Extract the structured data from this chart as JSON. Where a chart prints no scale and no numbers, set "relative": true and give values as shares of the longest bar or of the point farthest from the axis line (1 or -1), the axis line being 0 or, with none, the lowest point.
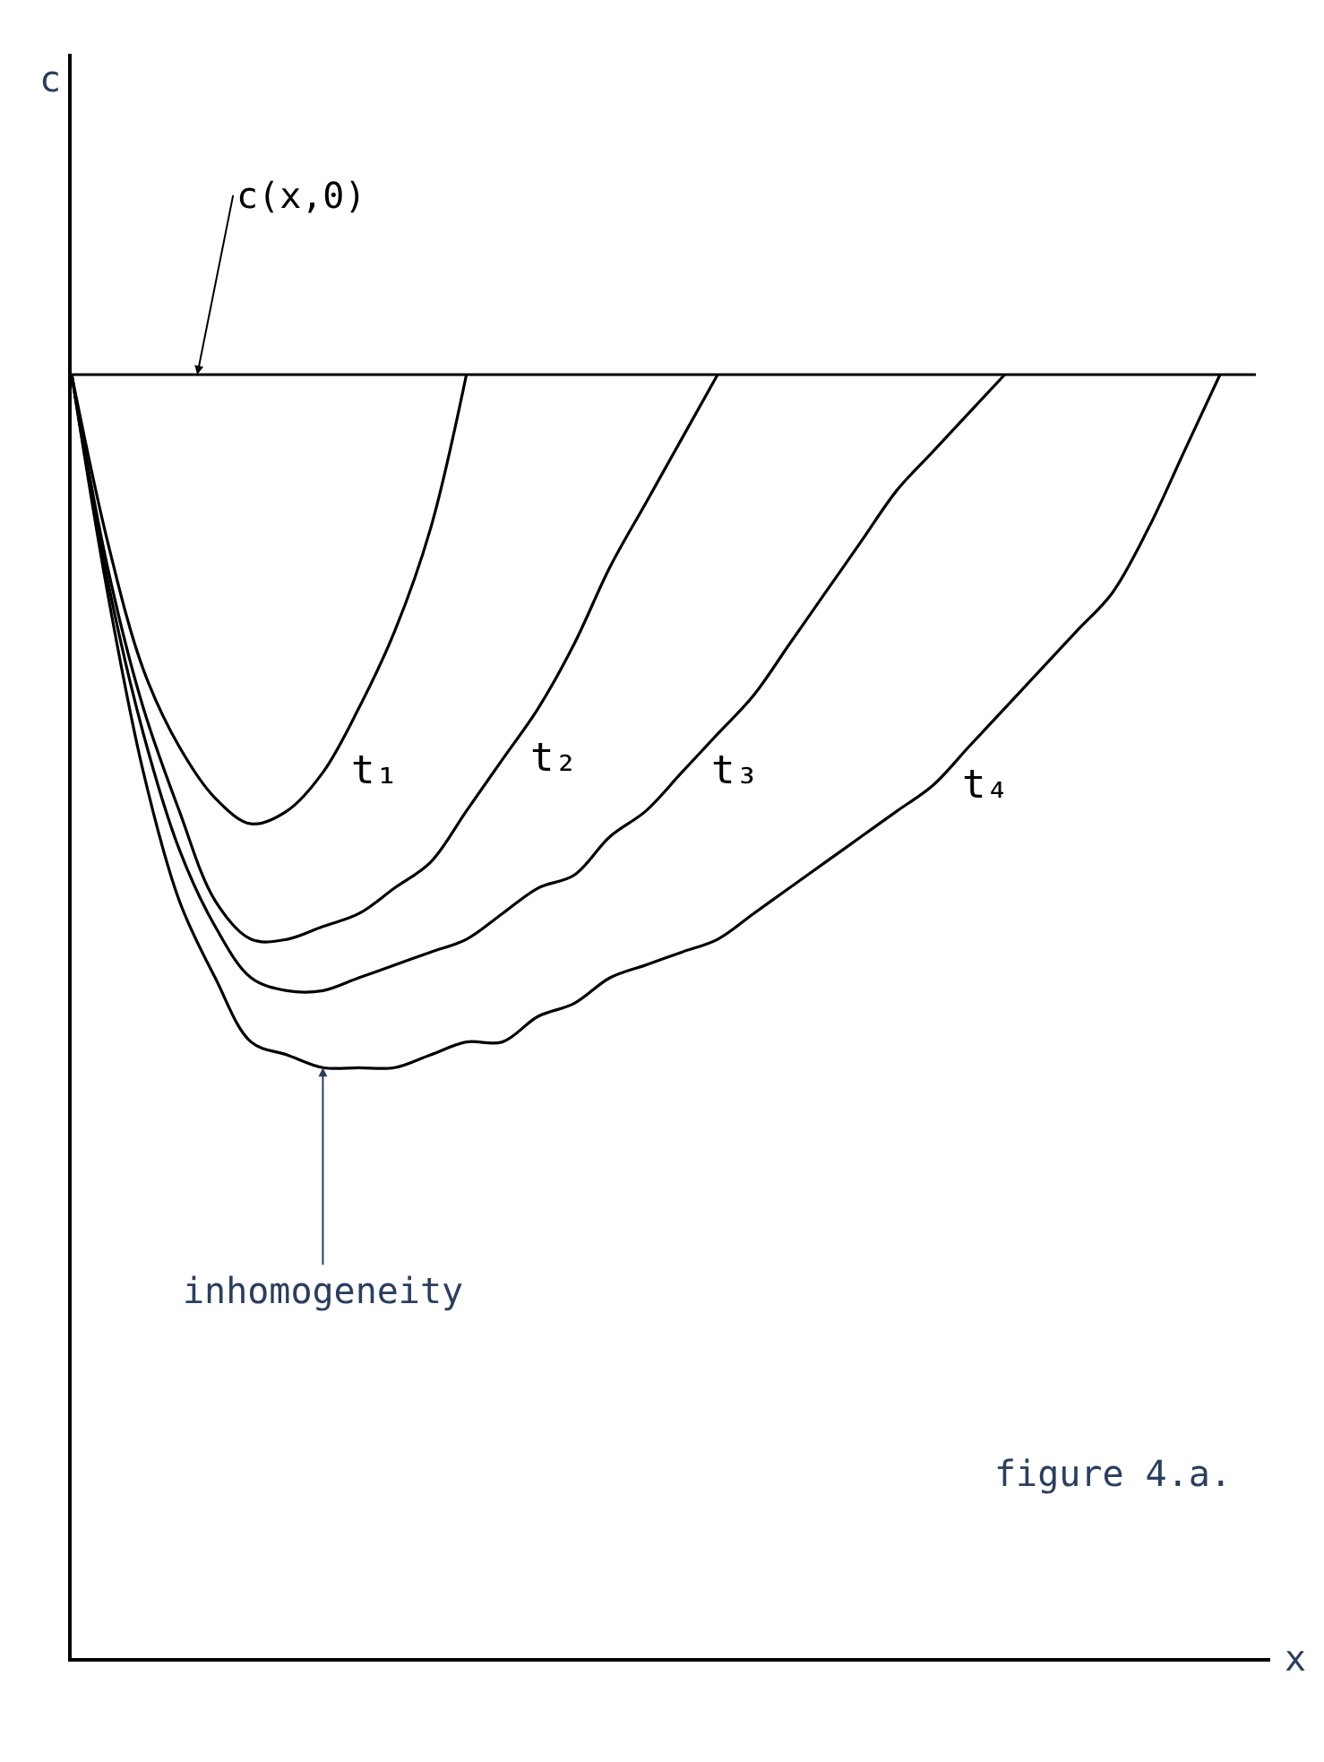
{
  "chart_data": {
    "type": "line",
    "relative": true,
    "xlabel": "x",
    "categories": [
      null,
      null,
      null,
      null,
      null,
      null,
      null,
      null,
      null,
      null,
      null,
      null,
      null,
      null,
      null,
      null,
      null,
      null,
      null,
      null,
      null,
      null,
      null,
      null,
      null,
      null,
      null,
      null,
      null,
      null,
      null,
      null,
      null,
      null
    ],
    "series": [
      {
        "name": "c(x,0)",
        "color": "#000000",
        "values": [
          1,
          1,
          1,
          1,
          1,
          1,
          1,
          1,
          1,
          1,
          1,
          1,
          1,
          1,
          1,
          1,
          1,
          1,
          1,
          1,
          1,
          1,
          1,
          1,
          1,
          1,
          1,
          1,
          1,
          1,
          1,
          1,
          1,
          1
        ]
      },
      {
        "name": "t₁",
        "color": "#000000",
        "values": [
          1,
          0.87,
          0.77,
          0.71,
          0.67,
          0.65,
          0.66,
          0.69,
          0.74,
          0.8,
          0.88,
          1,
          null,
          null,
          null,
          null,
          null,
          null,
          null,
          null,
          null,
          null,
          null,
          null,
          null,
          null,
          null,
          null,
          null,
          null,
          null,
          null,
          null,
          null
        ]
      },
      {
        "name": "t₂",
        "color": "#000000",
        "values": [
          1,
          0.85,
          0.74,
          0.66,
          0.59,
          0.56,
          0.56,
          0.57,
          0.58,
          0.6,
          0.62,
          0.66,
          0.7,
          0.74,
          0.79,
          0.85,
          0.9,
          0.95,
          1,
          null,
          null,
          null,
          null,
          null,
          null,
          null,
          null,
          null,
          null,
          null,
          null,
          null,
          null,
          null
        ]
      },
      {
        "name": "t₃",
        "color": "#000000",
        "values": [
          1,
          0.84,
          0.72,
          0.63,
          0.57,
          0.53,
          0.52,
          0.52,
          0.53,
          0.54,
          0.55,
          0.56,
          0.58,
          0.6,
          0.61,
          0.64,
          0.66,
          0.69,
          0.72,
          0.75,
          0.79,
          0.83,
          0.87,
          0.91,
          0.94,
          0.97,
          1,
          null,
          null,
          null,
          null,
          null,
          null,
          null
        ]
      },
      {
        "name": "t₄",
        "color": "#000000",
        "values": [
          1,
          0.83,
          0.69,
          0.59,
          0.53,
          0.48,
          0.47,
          0.46,
          0.46,
          0.46,
          0.47,
          0.48,
          0.48,
          0.5,
          0.51,
          0.53,
          0.54,
          0.55,
          0.56,
          0.58,
          0.6,
          0.62,
          0.64,
          0.66,
          0.68,
          0.71,
          0.74,
          0.77,
          0.8,
          0.83,
          0.88,
          0.94,
          1,
          null
        ]
      }
    ],
    "annotations": [
      "c",
      "inhomogeneity",
      "figure 4.a."
    ],
    "legend": false,
    "marker": "none",
    "line_style": "solid"
  }
}
